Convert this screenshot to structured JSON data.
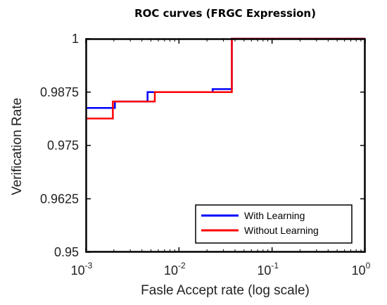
{
  "chart_data": {
    "type": "line",
    "title": "ROC curves (FRGC Expression)",
    "xlabel": "Fasle Accept rate (log scale)",
    "ylabel": "Verification Rate",
    "xscale": "log",
    "xlim": [
      0.001,
      1
    ],
    "ylim": [
      0.95,
      1
    ],
    "xticks": [
      {
        "value": 0.001,
        "base": "10",
        "exp": "-3"
      },
      {
        "value": 0.01,
        "base": "10",
        "exp": "-2"
      },
      {
        "value": 0.1,
        "base": "10",
        "exp": "-1"
      },
      {
        "value": 1,
        "base": "10",
        "exp": "0"
      }
    ],
    "yticks": [
      {
        "value": 0.95,
        "label": "0.95"
      },
      {
        "value": 0.9625,
        "label": "0.9625"
      },
      {
        "value": 0.975,
        "label": "0.975"
      },
      {
        "value": 0.9875,
        "label": "0.9875"
      },
      {
        "value": 1,
        "label": "1"
      }
    ],
    "grid": false,
    "legend_position": "bottom-right",
    "series": [
      {
        "name": "With Learning",
        "color": "#0000ff",
        "x": [
          0.001,
          0.00205,
          0.00205,
          0.0046,
          0.0046,
          0.023,
          0.023,
          0.037,
          0.037,
          1
        ],
        "y": [
          0.9838,
          0.9838,
          0.9853,
          0.9853,
          0.9875,
          0.9875,
          0.9882,
          0.9882,
          1,
          1
        ]
      },
      {
        "name": "Without Learning",
        "color": "#ff0000",
        "x": [
          0.001,
          0.00195,
          0.00195,
          0.0055,
          0.0055,
          0.037,
          0.037,
          1
        ],
        "y": [
          0.9813,
          0.9813,
          0.9853,
          0.9853,
          0.9875,
          0.9875,
          1,
          1
        ]
      }
    ]
  }
}
